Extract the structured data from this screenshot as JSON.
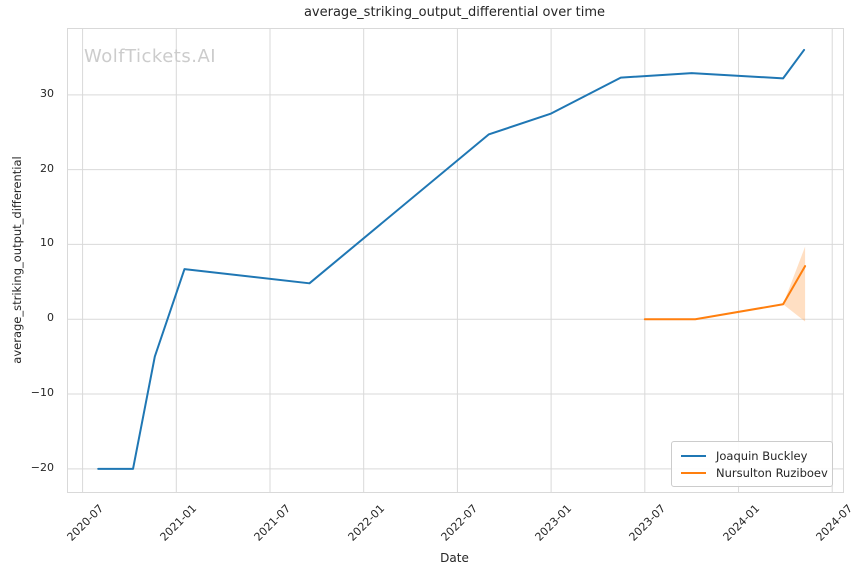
{
  "figure": {
    "title": "average_striking_output_differential over time",
    "xlabel": "Date",
    "ylabel": "average_striking_output_differential",
    "watermark": "WolfTickets.AI"
  },
  "colors": {
    "grid": "#d9d9d9",
    "text": "#262626",
    "watermark": "#cccccc",
    "background": "#ffffff",
    "series_blue": "#1f77b4",
    "series_orange": "#ff7f0e"
  },
  "chart_data": {
    "type": "line",
    "title": "average_striking_output_differential over time",
    "xlabel": "Date",
    "ylabel": "average_striking_output_differential",
    "grid": true,
    "legend_position": "lower right",
    "x_ticks": [
      "2020-07",
      "2021-01",
      "2021-07",
      "2022-01",
      "2022-07",
      "2023-01",
      "2023-07",
      "2024-01",
      "2024-07"
    ],
    "y_ticks": [
      -20,
      -10,
      0,
      10,
      20,
      30
    ],
    "x_range": [
      "2020-06-03",
      "2024-07-22"
    ],
    "y_range": [
      -23.1,
      38.8
    ],
    "series": [
      {
        "name": "Joaquin Buckley",
        "color": "#1f77b4",
        "points": [
          {
            "date": "2020-08-01",
            "value": -20.0
          },
          {
            "date": "2020-10-08",
            "value": -20.0
          },
          {
            "date": "2020-11-20",
            "value": -5.0
          },
          {
            "date": "2021-01-17",
            "value": 6.7
          },
          {
            "date": "2021-09-17",
            "value": 4.8
          },
          {
            "date": "2022-09-01",
            "value": 24.7
          },
          {
            "date": "2023-01-01",
            "value": 27.5
          },
          {
            "date": "2023-05-15",
            "value": 32.3
          },
          {
            "date": "2023-10-01",
            "value": 32.9
          },
          {
            "date": "2024-03-27",
            "value": 32.2
          },
          {
            "date": "2024-05-07",
            "value": 36.0
          }
        ]
      },
      {
        "name": "Nursulton Ruziboev",
        "color": "#ff7f0e",
        "points": [
          {
            "date": "2023-07-01",
            "value": 0.0
          },
          {
            "date": "2023-10-08",
            "value": 0.0
          },
          {
            "date": "2024-03-27",
            "value": 2.0
          },
          {
            "date": "2024-05-09",
            "value": 7.1
          }
        ],
        "band": [
          {
            "date": "2024-03-27",
            "lo": 2.0,
            "hi": 2.0
          },
          {
            "date": "2024-05-09",
            "lo": -0.3,
            "hi": 9.7
          }
        ],
        "band_opacity": 0.25
      }
    ]
  }
}
